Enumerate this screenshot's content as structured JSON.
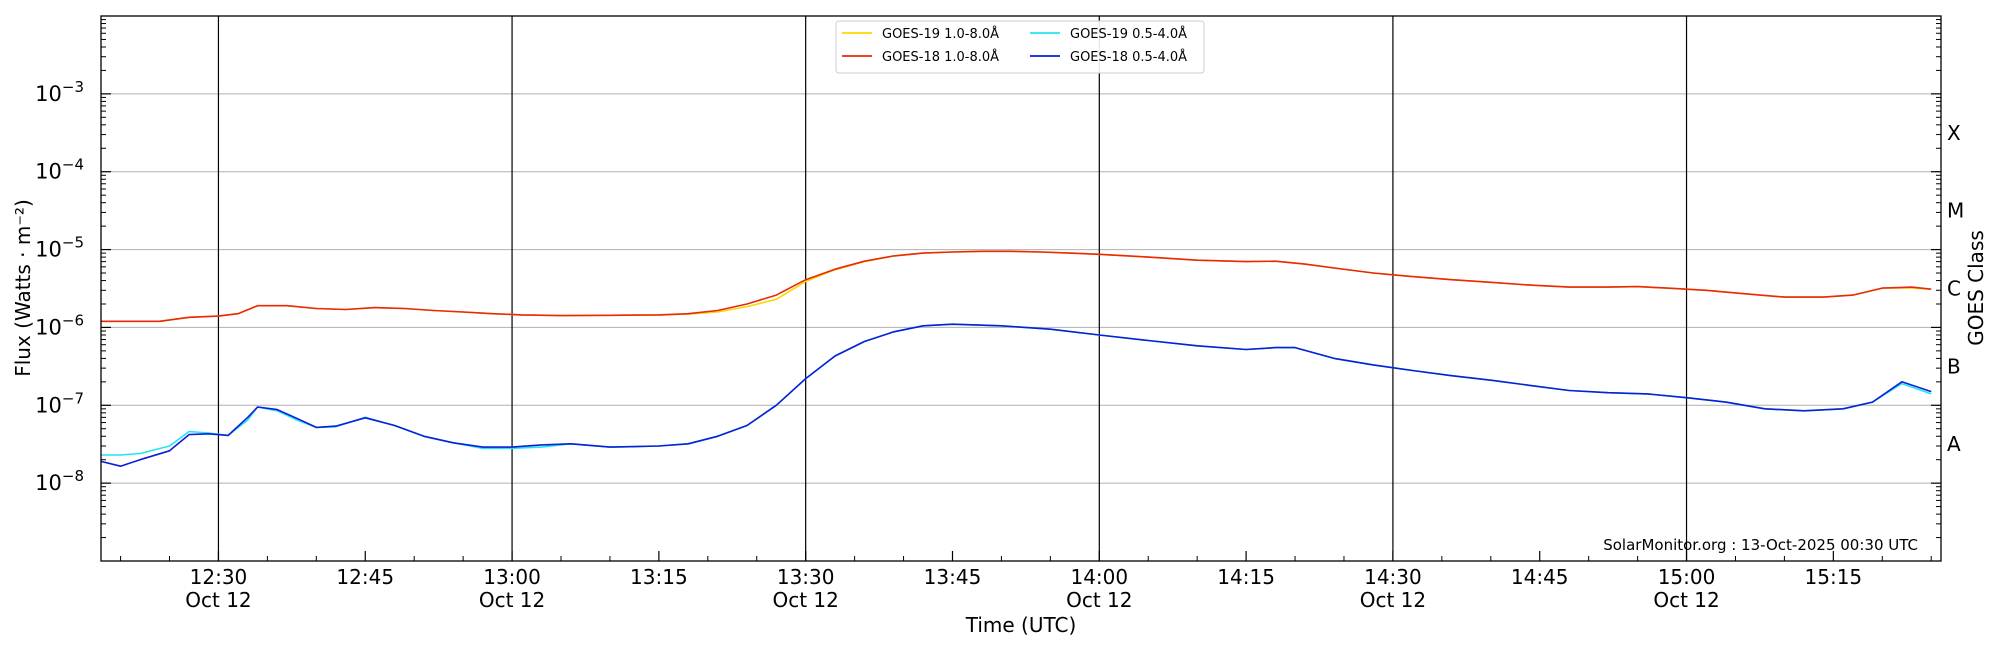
{
  "chart_data": {
    "type": "line",
    "xlabel": "Time (UTC)",
    "ylabel": "Flux (Watts · m⁻²)",
    "right_axis_label": "GOES Class",
    "y_scale": "log",
    "ylim": [
      1e-09,
      0.01
    ],
    "xlim": [
      "2025-10-12 12:18",
      "2025-10-12 15:26"
    ],
    "grid": "horizontal",
    "legend_position": "top-center",
    "credit": "SolarMonitor.org : 13-Oct-2025 00:30 UTC",
    "y_ticks": [
      {
        "value": 1e-08,
        "base": "10",
        "exp": "−8"
      },
      {
        "value": 1e-07,
        "base": "10",
        "exp": "−7"
      },
      {
        "value": 1e-06,
        "base": "10",
        "exp": "−6"
      },
      {
        "value": 1e-05,
        "base": "10",
        "exp": "−5"
      },
      {
        "value": 0.0001,
        "base": "10",
        "exp": "−4"
      },
      {
        "value": 0.001,
        "base": "10",
        "exp": "−3"
      }
    ],
    "x_ticks": [
      {
        "time": "12:30",
        "date": "Oct 12"
      },
      {
        "time": "12:45",
        "date": ""
      },
      {
        "time": "13:00",
        "date": "Oct 12"
      },
      {
        "time": "13:15",
        "date": ""
      },
      {
        "time": "13:30",
        "date": "Oct 12"
      },
      {
        "time": "13:45",
        "date": ""
      },
      {
        "time": "14:00",
        "date": "Oct 12"
      },
      {
        "time": "14:15",
        "date": ""
      },
      {
        "time": "14:30",
        "date": "Oct 12"
      },
      {
        "time": "14:45",
        "date": ""
      },
      {
        "time": "15:00",
        "date": "Oct 12"
      },
      {
        "time": "15:15",
        "date": ""
      }
    ],
    "vertical_lines": [
      "12:30",
      "13:00",
      "13:30",
      "14:00",
      "14:30",
      "15:00"
    ],
    "goes_classes": [
      {
        "label": "A",
        "value": 1e-08
      },
      {
        "label": "B",
        "value": 1e-07
      },
      {
        "label": "C",
        "value": 1e-06
      },
      {
        "label": "M",
        "value": 1e-05
      },
      {
        "label": "X",
        "value": 0.0001
      }
    ],
    "series": [
      {
        "name": "GOES-19 1.0-8.0Å",
        "color": "#ffd700",
        "x": [
          "12:18",
          "12:24",
          "12:27",
          "12:30",
          "12:32",
          "12:34",
          "12:37",
          "12:40",
          "12:43",
          "12:46",
          "12:49",
          "12:52",
          "12:55",
          "12:58",
          "13:01",
          "13:05",
          "13:10",
          "13:15",
          "13:18",
          "13:21",
          "13:24",
          "13:27",
          "13:30",
          "13:33",
          "13:36",
          "13:39",
          "13:42",
          "13:45",
          "13:48",
          "13:51",
          "13:54",
          "13:57",
          "14:00",
          "14:05",
          "14:10",
          "14:15",
          "14:18",
          "14:21",
          "14:24",
          "14:28",
          "14:32",
          "14:36",
          "14:40",
          "14:44",
          "14:48",
          "14:52",
          "14:55",
          "14:58",
          "15:02",
          "15:06",
          "15:10",
          "15:14",
          "15:17",
          "15:20",
          "15:23",
          "15:25"
        ],
        "values": [
          1.2e-06,
          1.2e-06,
          1.35e-06,
          1.4e-06,
          1.5e-06,
          1.9e-06,
          1.9e-06,
          1.75e-06,
          1.7e-06,
          1.8e-06,
          1.75e-06,
          1.65e-06,
          1.58e-06,
          1.5e-06,
          1.45e-06,
          1.42e-06,
          1.43e-06,
          1.45e-06,
          1.48e-06,
          1.58e-06,
          1.85e-06,
          2.3e-06,
          3.9e-06,
          5.5e-06,
          7e-06,
          8.3e-06,
          9e-06,
          9.3e-06,
          9.5e-06,
          9.5e-06,
          9.3e-06,
          9e-06,
          8.7e-06,
          8e-06,
          7.3e-06,
          7e-06,
          7.1e-06,
          6.5e-06,
          5.8e-06,
          5e-06,
          4.5e-06,
          4.1e-06,
          3.8e-06,
          3.5e-06,
          3.3e-06,
          3.3e-06,
          3.35e-06,
          3.2e-06,
          3e-06,
          2.7e-06,
          2.45e-06,
          2.45e-06,
          2.6e-06,
          3.2e-06,
          3.2e-06,
          3.1e-06
        ]
      },
      {
        "name": "GOES-18 1.0-8.0Å",
        "color": "#e8290b",
        "x": [
          "12:18",
          "12:24",
          "12:27",
          "12:30",
          "12:32",
          "12:34",
          "12:37",
          "12:40",
          "12:43",
          "12:46",
          "12:49",
          "12:52",
          "12:55",
          "12:58",
          "13:01",
          "13:05",
          "13:10",
          "13:15",
          "13:18",
          "13:21",
          "13:24",
          "13:27",
          "13:30",
          "13:33",
          "13:36",
          "13:39",
          "13:42",
          "13:45",
          "13:48",
          "13:51",
          "13:54",
          "13:57",
          "14:00",
          "14:05",
          "14:10",
          "14:15",
          "14:18",
          "14:21",
          "14:24",
          "14:28",
          "14:32",
          "14:36",
          "14:40",
          "14:44",
          "14:48",
          "14:52",
          "14:55",
          "14:58",
          "15:02",
          "15:06",
          "15:10",
          "15:14",
          "15:17",
          "15:20",
          "15:23",
          "15:25"
        ],
        "values": [
          1.2e-06,
          1.2e-06,
          1.35e-06,
          1.4e-06,
          1.5e-06,
          1.9e-06,
          1.9e-06,
          1.75e-06,
          1.7e-06,
          1.8e-06,
          1.75e-06,
          1.65e-06,
          1.58e-06,
          1.5e-06,
          1.45e-06,
          1.42e-06,
          1.43e-06,
          1.45e-06,
          1.5e-06,
          1.65e-06,
          2e-06,
          2.6e-06,
          4.1e-06,
          5.6e-06,
          7.1e-06,
          8.3e-06,
          9e-06,
          9.3e-06,
          9.5e-06,
          9.5e-06,
          9.3e-06,
          9e-06,
          8.7e-06,
          8e-06,
          7.3e-06,
          7e-06,
          7.1e-06,
          6.5e-06,
          5.8e-06,
          5e-06,
          4.5e-06,
          4.1e-06,
          3.8e-06,
          3.5e-06,
          3.3e-06,
          3.3e-06,
          3.35e-06,
          3.2e-06,
          3e-06,
          2.7e-06,
          2.45e-06,
          2.45e-06,
          2.6e-06,
          3.2e-06,
          3.3e-06,
          3.1e-06
        ]
      },
      {
        "name": "GOES-19 0.5-4.0Å",
        "color": "#22e5f2",
        "x": [
          "12:18",
          "12:20",
          "12:22",
          "12:25",
          "12:27",
          "12:29",
          "12:31",
          "12:33",
          "12:34",
          "12:36",
          "12:38",
          "12:40",
          "12:42",
          "12:45",
          "12:48",
          "12:51",
          "12:54",
          "12:57",
          "13:00",
          "13:03",
          "13:06",
          "13:10",
          "13:15",
          "13:18",
          "13:21",
          "13:24",
          "13:27",
          "13:30",
          "13:33",
          "13:36",
          "13:39",
          "13:42",
          "13:45",
          "13:50",
          "13:55",
          "14:00",
          "14:05",
          "14:10",
          "14:15",
          "14:18",
          "14:20",
          "14:24",
          "14:28",
          "14:32",
          "14:36",
          "14:40",
          "14:44",
          "14:48",
          "14:52",
          "14:56",
          "15:00",
          "15:04",
          "15:08",
          "15:12",
          "15:16",
          "15:19",
          "15:22",
          "15:25"
        ],
        "values": [
          2.3e-08,
          2.3e-08,
          2.4e-08,
          3e-08,
          4.6e-08,
          4.4e-08,
          4.1e-08,
          6.5e-08,
          9.5e-08,
          8.5e-08,
          6.5e-08,
          5.2e-08,
          5.3e-08,
          7e-08,
          5.5e-08,
          4e-08,
          3.3e-08,
          2.8e-08,
          2.8e-08,
          2.9e-08,
          3.2e-08,
          2.9e-08,
          3e-08,
          3.2e-08,
          4e-08,
          5.5e-08,
          1e-07,
          2.2e-07,
          4.3e-07,
          6.6e-07,
          8.8e-07,
          1.05e-06,
          1.1e-06,
          1.05e-06,
          9.5e-07,
          8e-07,
          6.8e-07,
          5.8e-07,
          5.2e-07,
          5.5e-07,
          5.5e-07,
          4e-07,
          3.3e-07,
          2.8e-07,
          2.4e-07,
          2.1e-07,
          1.8e-07,
          1.55e-07,
          1.45e-07,
          1.4e-07,
          1.25e-07,
          1.1e-07,
          9e-08,
          8.5e-08,
          9e-08,
          1.1e-07,
          1.9e-07,
          1.4e-07
        ]
      },
      {
        "name": "GOES-18 0.5-4.0Å",
        "color": "#0b1fd6",
        "x": [
          "12:18",
          "12:20",
          "12:22",
          "12:25",
          "12:27",
          "12:29",
          "12:31",
          "12:33",
          "12:34",
          "12:36",
          "12:38",
          "12:40",
          "12:42",
          "12:45",
          "12:48",
          "12:51",
          "12:54",
          "12:57",
          "13:00",
          "13:03",
          "13:06",
          "13:10",
          "13:15",
          "13:18",
          "13:21",
          "13:24",
          "13:27",
          "13:30",
          "13:33",
          "13:36",
          "13:39",
          "13:42",
          "13:45",
          "13:50",
          "13:55",
          "14:00",
          "14:05",
          "14:10",
          "14:15",
          "14:18",
          "14:20",
          "14:24",
          "14:28",
          "14:32",
          "14:36",
          "14:40",
          "14:44",
          "14:48",
          "14:52",
          "14:56",
          "15:00",
          "15:04",
          "15:08",
          "15:12",
          "15:16",
          "15:19",
          "15:22",
          "15:25"
        ],
        "values": [
          1.9e-08,
          1.65e-08,
          2e-08,
          2.6e-08,
          4.2e-08,
          4.3e-08,
          4.1e-08,
          7e-08,
          9.5e-08,
          8.8e-08,
          6.8e-08,
          5.2e-08,
          5.4e-08,
          6.9e-08,
          5.5e-08,
          4e-08,
          3.3e-08,
          2.9e-08,
          2.9e-08,
          3.1e-08,
          3.2e-08,
          2.9e-08,
          3e-08,
          3.2e-08,
          4e-08,
          5.5e-08,
          1e-07,
          2.2e-07,
          4.3e-07,
          6.6e-07,
          8.8e-07,
          1.05e-06,
          1.1e-06,
          1.05e-06,
          9.5e-07,
          8e-07,
          6.8e-07,
          5.8e-07,
          5.2e-07,
          5.5e-07,
          5.5e-07,
          4e-07,
          3.3e-07,
          2.8e-07,
          2.4e-07,
          2.1e-07,
          1.8e-07,
          1.55e-07,
          1.45e-07,
          1.4e-07,
          1.25e-07,
          1.1e-07,
          9e-08,
          8.5e-08,
          9e-08,
          1.1e-07,
          2e-07,
          1.5e-07
        ]
      }
    ]
  }
}
